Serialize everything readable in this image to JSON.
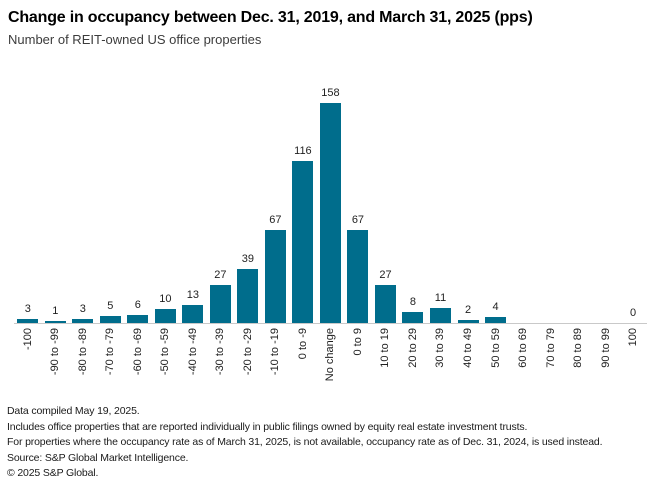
{
  "chart_data": {
    "type": "bar",
    "title": "Change in occupancy between Dec. 31, 2019, and March 31, 2025 (pps)",
    "subtitle": "Number of REIT-owned US office properties",
    "categories": [
      "-100",
      "-90 to -99",
      "-80 to -89",
      "-70 to -79",
      "-60 to -69",
      "-50 to -59",
      "-40 to -49",
      "-30 to -39",
      "-20 to -29",
      "-10 to -19",
      "0 to -9",
      "No change",
      "0 to 9",
      "10 to 19",
      "20 to 29",
      "30 to 39",
      "40 to 49",
      "50 to 59",
      "60 to 69",
      "70 to 79",
      "80 to 89",
      "90 to 99",
      "100"
    ],
    "values": [
      3,
      1,
      3,
      5,
      6,
      10,
      13,
      27,
      39,
      67,
      116,
      158,
      67,
      27,
      8,
      11,
      2,
      4,
      null,
      null,
      null,
      null,
      0
    ],
    "bar_color": "#006d8c",
    "label_color": "#1f1f1f",
    "axis_line_color": "#c9c9c9",
    "ylim": [
      0,
      158
    ],
    "data_labels": true,
    "grid": false,
    "legend": false,
    "xlabel": "",
    "ylabel": ""
  },
  "footnotes": [
    "Data compiled May 19, 2025.",
    "Includes office properties that are reported individually in public filings owned by equity real estate investment trusts.",
    "For properties where the occupancy rate as of March 31, 2025, is not available, occupancy rate as of Dec. 31, 2024, is used instead.",
    "Source: S&P Global Market Intelligence.",
    "© 2025 S&P Global."
  ]
}
